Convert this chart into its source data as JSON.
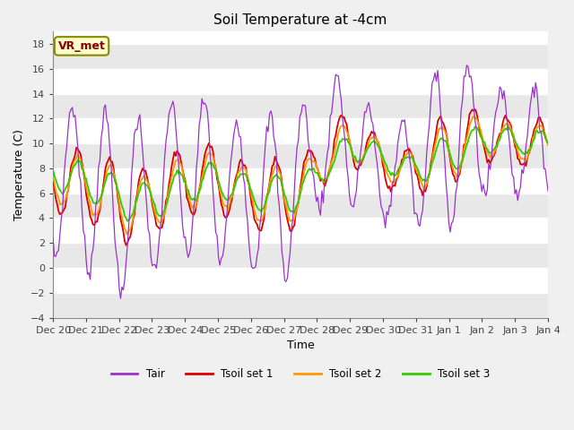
{
  "title": "Soil Temperature at -4cm",
  "xlabel": "Time",
  "ylabel": "Temperature (C)",
  "ylim": [
    -4,
    19
  ],
  "yticks": [
    -4,
    -2,
    0,
    2,
    4,
    6,
    8,
    10,
    12,
    14,
    16,
    18
  ],
  "line_colors": {
    "Tair": "#9933cc",
    "Tsoil1": "#dd0000",
    "Tsoil2": "#ff9900",
    "Tsoil3": "#33cc00"
  },
  "legend_labels": [
    "Tair",
    "Tsoil set 1",
    "Tsoil set 2",
    "Tsoil set 3"
  ],
  "annotation_text": "VR_met",
  "start_day": 20,
  "days": 15,
  "n_points": 360
}
